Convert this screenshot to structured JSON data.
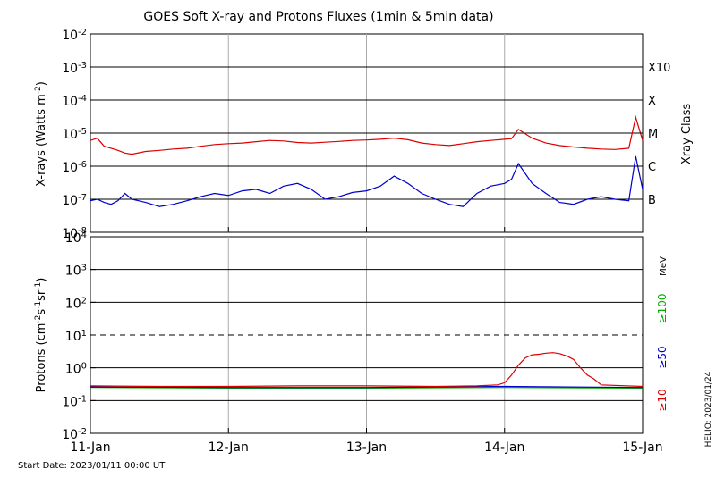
{
  "title": "GOES Soft X-ray and Protons Fluxes   (1min & 5min data)",
  "footer": {
    "start_date": "Start Date: 2023/01/11 00:00 UT",
    "credit": "HELIO: 2023/01/24"
  },
  "x_axis": {
    "ticks": [
      "11-Jan",
      "12-Jan",
      "13-Jan",
      "14-Jan",
      "15-Jan"
    ],
    "range_days": [
      0,
      4
    ]
  },
  "chart_data": [
    {
      "type": "line",
      "panel": "xray",
      "ylabel": "X-rays (Watts m-2)",
      "yscale": "log",
      "ylim": [
        1e-08,
        0.01
      ],
      "ytick_exponents": [
        -2,
        -3,
        -4,
        -5,
        -6,
        -7,
        -8
      ],
      "grid": "major horizontal lines at each decade; vertical lines at day boundaries",
      "right_axis_label": "Xray Class",
      "class_labels": [
        {
          "label": "X10",
          "flux": 0.001
        },
        {
          "label": "X",
          "flux": 0.0001
        },
        {
          "label": "M",
          "flux": 1e-05
        },
        {
          "label": "C",
          "flux": 1e-06
        },
        {
          "label": "B",
          "flux": 1e-07
        }
      ],
      "series": [
        {
          "color": "#dd0000",
          "x_days": [
            0,
            0.05,
            0.1,
            0.15,
            0.2,
            0.25,
            0.3,
            0.4,
            0.5,
            0.6,
            0.7,
            0.8,
            0.9,
            1.0,
            1.1,
            1.2,
            1.3,
            1.4,
            1.5,
            1.6,
            1.7,
            1.8,
            1.9,
            2.0,
            2.1,
            2.2,
            2.3,
            2.4,
            2.5,
            2.6,
            2.7,
            2.8,
            2.9,
            3.0,
            3.05,
            3.1,
            3.2,
            3.3,
            3.4,
            3.5,
            3.6,
            3.7,
            3.8,
            3.9,
            3.95,
            4.0
          ],
          "y": [
            6e-06,
            7e-06,
            4e-06,
            3.5e-06,
            3e-06,
            2.5e-06,
            2.3e-06,
            2.8e-06,
            3e-06,
            3.3e-06,
            3.5e-06,
            4e-06,
            4.5e-06,
            4.8e-06,
            5e-06,
            5.5e-06,
            6e-06,
            5.8e-06,
            5.2e-06,
            5e-06,
            5.3e-06,
            5.6e-06,
            6e-06,
            6.2e-06,
            6.5e-06,
            7e-06,
            6.3e-06,
            5e-06,
            4.5e-06,
            4.2e-06,
            4.8e-06,
            5.5e-06,
            6e-06,
            6.5e-06,
            6.8e-06,
            1.3e-05,
            7e-06,
            5e-06,
            4.2e-06,
            3.8e-06,
            3.5e-06,
            3.3e-06,
            3.2e-06,
            3.5e-06,
            3e-05,
            6e-06
          ]
        },
        {
          "color": "#0000cc",
          "x_days": [
            0,
            0.05,
            0.1,
            0.15,
            0.2,
            0.25,
            0.3,
            0.4,
            0.5,
            0.6,
            0.7,
            0.8,
            0.9,
            1.0,
            1.1,
            1.2,
            1.3,
            1.4,
            1.5,
            1.6,
            1.7,
            1.8,
            1.9,
            2.0,
            2.1,
            2.2,
            2.3,
            2.4,
            2.5,
            2.6,
            2.7,
            2.8,
            2.9,
            3.0,
            3.05,
            3.1,
            3.2,
            3.3,
            3.4,
            3.5,
            3.6,
            3.7,
            3.8,
            3.9,
            3.95,
            4.0
          ],
          "y": [
            9e-08,
            1e-07,
            8e-08,
            7e-08,
            9e-08,
            1.5e-07,
            1e-07,
            8e-08,
            6e-08,
            7e-08,
            9e-08,
            1.2e-07,
            1.5e-07,
            1.3e-07,
            1.8e-07,
            2e-07,
            1.5e-07,
            2.5e-07,
            3e-07,
            2e-07,
            1e-07,
            1.2e-07,
            1.6e-07,
            1.8e-07,
            2.5e-07,
            5e-07,
            3e-07,
            1.5e-07,
            1e-07,
            7e-08,
            6e-08,
            1.5e-07,
            2.5e-07,
            3e-07,
            4e-07,
            1.2e-06,
            3e-07,
            1.5e-07,
            8e-08,
            7e-08,
            1e-07,
            1.2e-07,
            1e-07,
            9e-08,
            2e-06,
            2e-07
          ]
        }
      ]
    },
    {
      "type": "line",
      "panel": "protons",
      "ylabel": "Protons (cm-2s-1sr-1)",
      "yscale": "log",
      "ylim": [
        0.01,
        10000
      ],
      "ytick_labels": [
        "10^4",
        "10^3",
        "10^2",
        "10^1",
        "10^0",
        "10^-1",
        "10^-2"
      ],
      "grid": "decade lines; dashed line at 10^1",
      "energy_unit": "MeV",
      "series": [
        {
          "name": "≥10",
          "color": "#dd0000",
          "x_days": [
            0,
            0.5,
            1.0,
            1.5,
            2.0,
            2.5,
            2.8,
            2.95,
            3.0,
            3.05,
            3.1,
            3.15,
            3.2,
            3.25,
            3.3,
            3.35,
            3.4,
            3.45,
            3.5,
            3.55,
            3.6,
            3.65,
            3.7,
            4.0
          ],
          "y": [
            0.28,
            0.27,
            0.27,
            0.28,
            0.28,
            0.27,
            0.28,
            0.3,
            0.35,
            0.6,
            1.2,
            2.0,
            2.5,
            2.6,
            2.8,
            2.9,
            2.7,
            2.3,
            1.8,
            1.0,
            0.6,
            0.45,
            0.3,
            0.27
          ]
        },
        {
          "name": "≥50",
          "color": "#0000cc",
          "x_days": [
            0,
            1.0,
            2.0,
            3.0,
            4.0
          ],
          "y": [
            0.26,
            0.25,
            0.25,
            0.27,
            0.25
          ]
        },
        {
          "name": "≥100",
          "color": "#00aa00",
          "x_days": [
            0,
            1.0,
            2.0,
            3.0,
            4.0
          ],
          "y": [
            0.25,
            0.24,
            0.24,
            0.25,
            0.24
          ]
        }
      ]
    }
  ]
}
